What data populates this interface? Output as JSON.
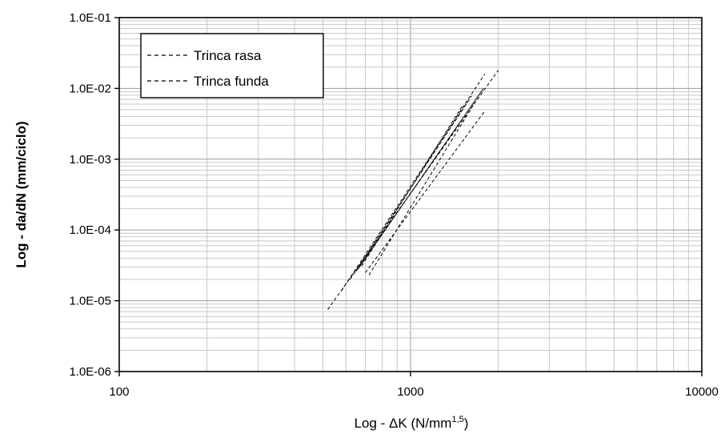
{
  "chart_data": {
    "type": "line",
    "xscale": "log",
    "yscale": "log",
    "xlim": [
      100,
      10000
    ],
    "ylim": [
      1e-06,
      0.1
    ],
    "xlabel": "Log - ΔK (N/mm",
    "xlabel_sup": "1,5",
    "xlabel_end": ")",
    "ylabel": "Log - da/dN (mm/ciclo)",
    "x_ticks": [
      {
        "value": 100,
        "label": "100"
      },
      {
        "value": 1000,
        "label": "1000"
      },
      {
        "value": 10000,
        "label": "10000"
      }
    ],
    "y_ticks": [
      {
        "value": 1e-06,
        "label": "1.0E-06"
      },
      {
        "value": 1e-05,
        "label": "1.0E-05"
      },
      {
        "value": 0.0001,
        "label": "1.0E-04"
      },
      {
        "value": 0.001,
        "label": "1.0E-03"
      },
      {
        "value": 0.01,
        "label": "1.0E-02"
      },
      {
        "value": 0.1,
        "label": "1.0E-01"
      }
    ],
    "grid": true,
    "legend_position": "top-left",
    "legend": [
      {
        "label": "Trinca rasa",
        "style": "dashed",
        "color": "#000000"
      },
      {
        "label": "Trinca funda",
        "style": "dashed",
        "color": "#000000"
      }
    ],
    "series": [
      {
        "style": "dashed",
        "x": [
          520,
          2000
        ],
        "y": [
          7.5e-06,
          0.018
        ]
      },
      {
        "style": "dashed",
        "x": [
          580,
          1800
        ],
        "y": [
          1.4e-05,
          0.016
        ]
      },
      {
        "style": "dashed",
        "x": [
          620,
          1620
        ],
        "y": [
          2e-05,
          0.0078
        ]
      },
      {
        "style": "dashed",
        "x": [
          650,
          1570
        ],
        "y": [
          2.6e-05,
          0.0065
        ]
      },
      {
        "style": "dashed",
        "x": [
          680,
          1500
        ],
        "y": [
          3.1e-05,
          0.0055
        ]
      },
      {
        "style": "dashed",
        "x": [
          700,
          1800
        ],
        "y": [
          2.5e-05,
          0.0048
        ]
      },
      {
        "style": "dashed",
        "x": [
          720,
          1650
        ],
        "y": [
          2.3e-05,
          0.006
        ]
      },
      {
        "style": "solid",
        "x": [
          660,
          1780
        ],
        "y": [
          2.8e-05,
          0.01
        ]
      }
    ]
  }
}
